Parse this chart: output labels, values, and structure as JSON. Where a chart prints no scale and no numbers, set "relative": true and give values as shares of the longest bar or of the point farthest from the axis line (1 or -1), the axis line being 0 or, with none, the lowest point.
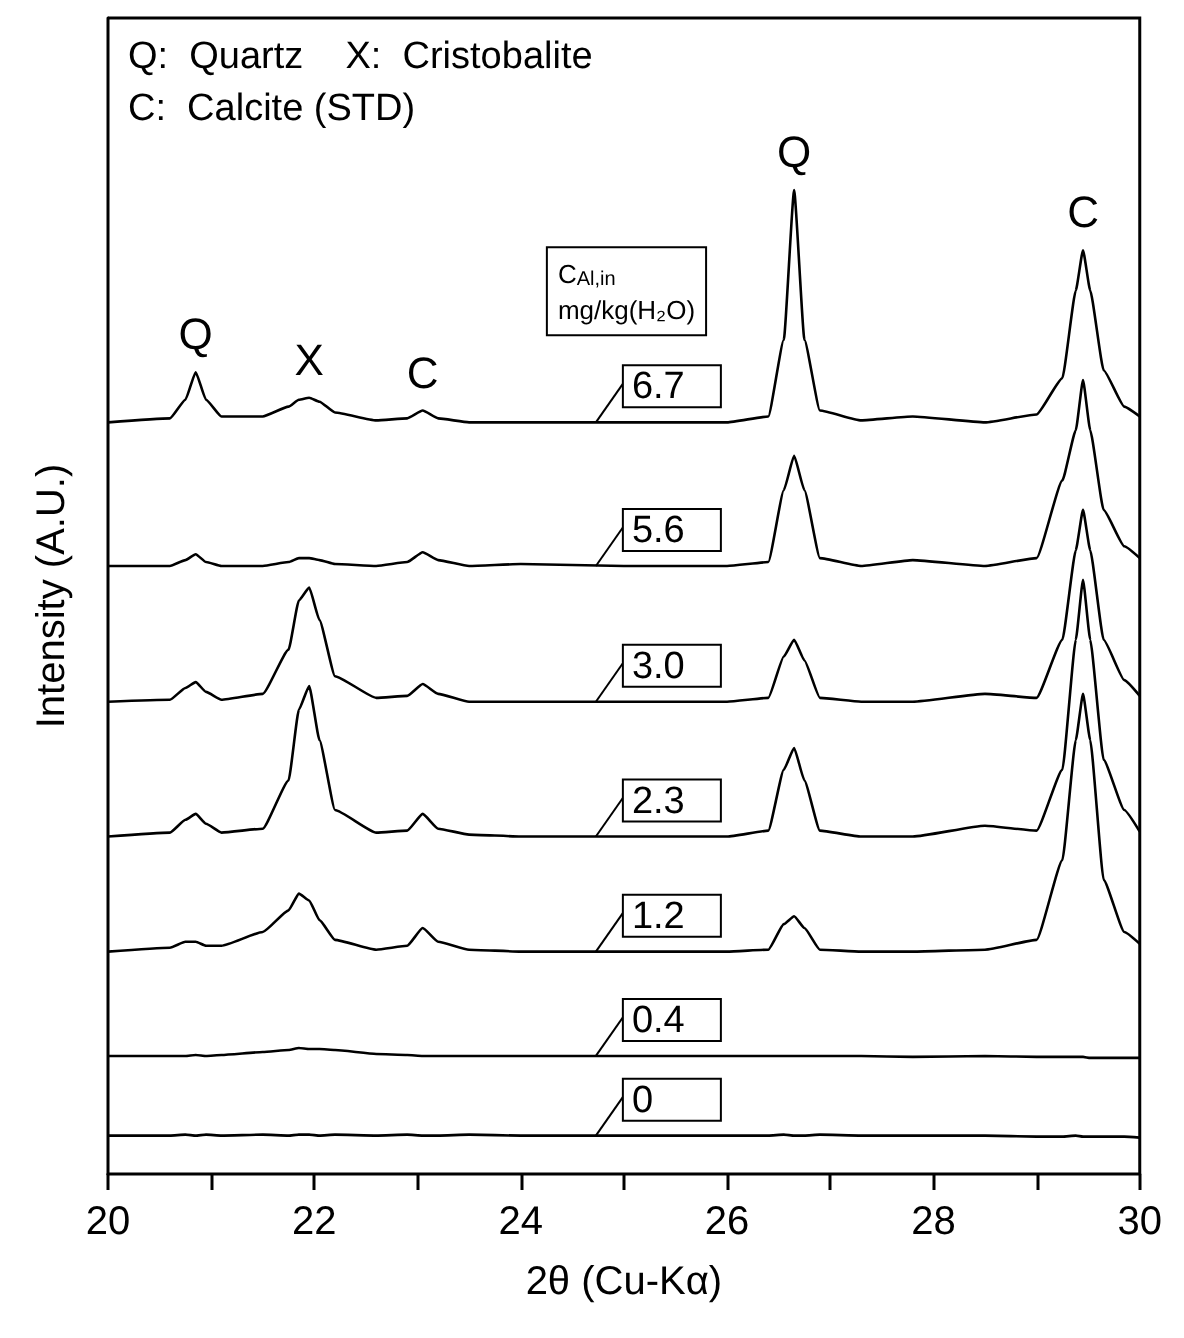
{
  "chart_data": {
    "type": "line",
    "relative": true,
    "xlabel": "2θ (Cu-Kα)",
    "ylabel": "Intensity (A.U.)",
    "legend_title": "C$_{Al,in}$\nmg/kg(H₂O)",
    "grid": false,
    "legend": "center",
    "marker": "none",
    "line_style": "solid",
    "tick_labels": "x",
    "xlim": [
      20,
      30
    ],
    "xticks": [
      20,
      {
        "value": 21,
        "label": null
      },
      22,
      {
        "value": 23,
        "label": null
      },
      24,
      {
        "value": 25,
        "label": null
      },
      26,
      {
        "value": 27,
        "label": null
      },
      28,
      {
        "value": 29,
        "label": null
      },
      30
    ],
    "x": [
      20,
      20.6,
      20.75,
      20.85,
      20.95,
      21.1,
      21.5,
      21.75,
      21.85,
      21.95,
      22.05,
      22.2,
      22.6,
      22.9,
      23.05,
      23.2,
      23.5,
      24,
      25,
      26,
      26.4,
      26.55,
      26.65,
      26.75,
      26.9,
      27.3,
      27.8,
      28.5,
      29,
      29.25,
      29.38,
      29.45,
      29.52,
      29.65,
      29.85,
      30
    ],
    "series": [
      {
        "name": "6.7",
        "color": "#000000",
        "values": [
          0.764,
          0.768,
          0.787,
          0.815,
          0.787,
          0.77,
          0.77,
          0.78,
          0.787,
          0.789,
          0.785,
          0.774,
          0.766,
          0.768,
          0.776,
          0.768,
          0.764,
          0.764,
          0.764,
          0.764,
          0.77,
          0.848,
          1.0,
          0.848,
          0.776,
          0.766,
          0.77,
          0.764,
          0.772,
          0.809,
          0.898,
          0.939,
          0.898,
          0.817,
          0.78,
          0.77
        ]
      },
      {
        "name": "5.6",
        "color": "#000000",
        "values": [
          0.618,
          0.618,
          0.624,
          0.63,
          0.622,
          0.618,
          0.618,
          0.622,
          0.626,
          0.626,
          0.624,
          0.62,
          0.618,
          0.622,
          0.632,
          0.624,
          0.618,
          0.62,
          0.618,
          0.618,
          0.622,
          0.695,
          0.73,
          0.695,
          0.626,
          0.618,
          0.624,
          0.618,
          0.626,
          0.705,
          0.756,
          0.807,
          0.756,
          0.675,
          0.638,
          0.626
        ]
      },
      {
        "name": "3.0",
        "color": "#000000",
        "values": [
          0.48,
          0.482,
          0.494,
          0.5,
          0.49,
          0.482,
          0.488,
          0.533,
          0.583,
          0.596,
          0.563,
          0.506,
          0.484,
          0.486,
          0.498,
          0.488,
          0.48,
          0.48,
          0.48,
          0.48,
          0.484,
          0.526,
          0.543,
          0.522,
          0.484,
          0.48,
          0.48,
          0.488,
          0.484,
          0.543,
          0.634,
          0.675,
          0.634,
          0.543,
          0.502,
          0.486
        ]
      },
      {
        "name": "2.3",
        "color": "#000000",
        "values": [
          0.343,
          0.347,
          0.36,
          0.366,
          0.356,
          0.347,
          0.351,
          0.4,
          0.472,
          0.496,
          0.441,
          0.37,
          0.347,
          0.349,
          0.366,
          0.351,
          0.345,
          0.343,
          0.343,
          0.343,
          0.349,
          0.411,
          0.433,
          0.4,
          0.349,
          0.343,
          0.343,
          0.354,
          0.349,
          0.411,
          0.543,
          0.604,
          0.543,
          0.421,
          0.37,
          0.348
        ]
      },
      {
        "name": "1.2",
        "color": "#000000",
        "values": [
          0.226,
          0.23,
          0.236,
          0.236,
          0.232,
          0.232,
          0.246,
          0.268,
          0.285,
          0.278,
          0.258,
          0.238,
          0.228,
          0.232,
          0.25,
          0.236,
          0.228,
          0.226,
          0.226,
          0.226,
          0.228,
          0.254,
          0.262,
          0.25,
          0.228,
          0.226,
          0.226,
          0.228,
          0.238,
          0.319,
          0.441,
          0.488,
          0.441,
          0.299,
          0.246,
          0.234
        ]
      },
      {
        "name": "0.4",
        "color": "#000000",
        "values": [
          0.12,
          0.12,
          0.12,
          0.121,
          0.12,
          0.121,
          0.124,
          0.126,
          0.128,
          0.127,
          0.127,
          0.126,
          0.122,
          0.121,
          0.12,
          0.12,
          0.12,
          0.12,
          0.12,
          0.12,
          0.12,
          0.12,
          0.12,
          0.12,
          0.12,
          0.12,
          0.119,
          0.12,
          0.119,
          0.119,
          0.119,
          0.119,
          0.118,
          0.118,
          0.118,
          0.118
        ]
      },
      {
        "name": "0",
        "color": "#000000",
        "values": [
          0.039,
          0.039,
          0.04,
          0.039,
          0.04,
          0.039,
          0.04,
          0.039,
          0.04,
          0.04,
          0.039,
          0.04,
          0.039,
          0.04,
          0.039,
          0.039,
          0.04,
          0.039,
          0.039,
          0.039,
          0.039,
          0.04,
          0.039,
          0.039,
          0.04,
          0.039,
          0.039,
          0.039,
          0.038,
          0.038,
          0.039,
          0.038,
          0.038,
          0.038,
          0.038,
          0.037
        ]
      }
    ],
    "annotations": [
      "Q:  Quartz    X:  Cristobalite",
      "C:  Calcite (STD)",
      {
        "text": "Q",
        "x": 20.85,
        "y": 0.815
      },
      {
        "text": "X",
        "x": 21.95,
        "y": 0.789
      },
      {
        "text": "C",
        "x": 23.05,
        "y": 0.776
      },
      {
        "text": "Q",
        "x": 26.65,
        "y": 1.0
      },
      {
        "text": "C",
        "x": 29.45,
        "y": 0.939
      }
    ]
  }
}
